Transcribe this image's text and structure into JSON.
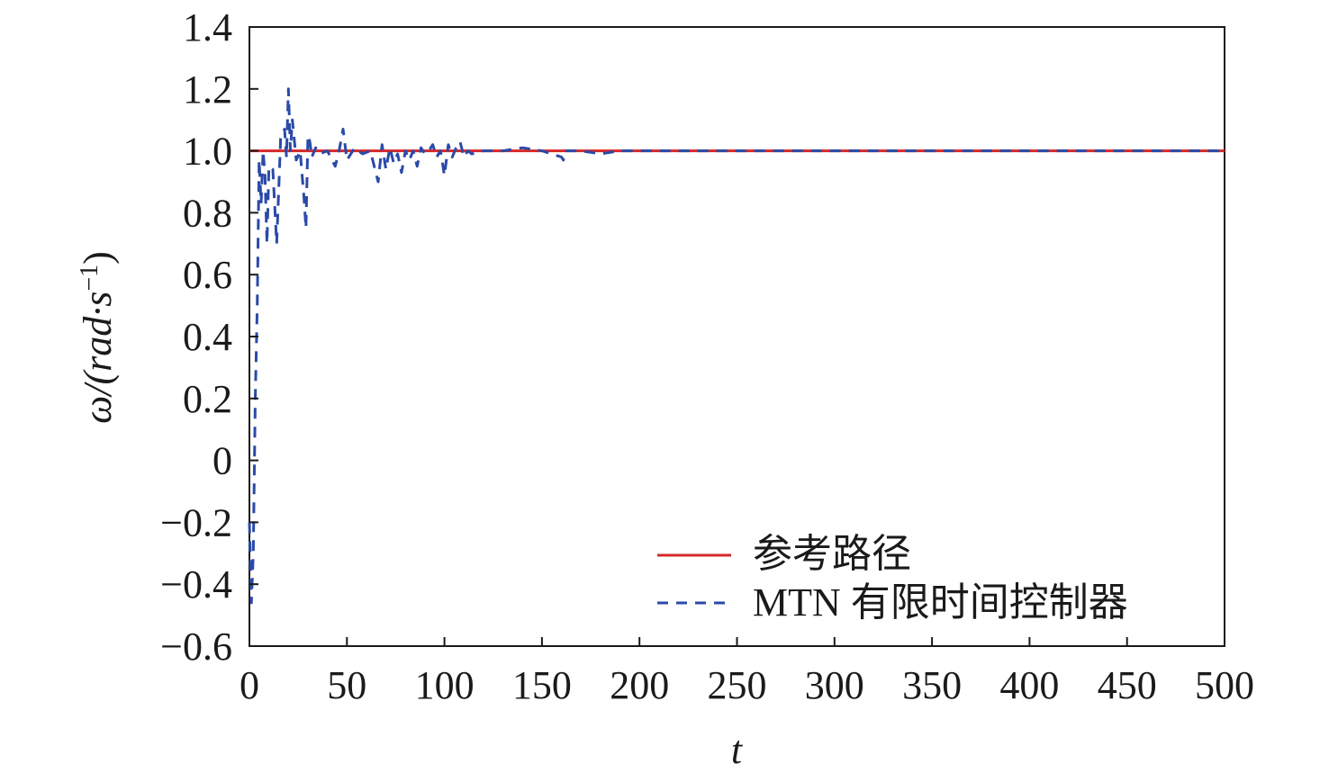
{
  "chart_data": {
    "type": "line",
    "xlabel": "t",
    "ylabel": "ω/(rad·s",
    "ylabel_unit_sup": "−1",
    "ylabel_close": ")",
    "xlim": [
      0,
      500
    ],
    "ylim": [
      -0.6,
      1.4
    ],
    "xticks": [
      0,
      50,
      100,
      150,
      200,
      250,
      300,
      350,
      400,
      450,
      500
    ],
    "xtick_labels": [
      "0",
      "50",
      "100",
      "150",
      "200",
      "250",
      "300",
      "350",
      "400",
      "450",
      "500"
    ],
    "yticks": [
      -0.6,
      -0.4,
      -0.2,
      0,
      0.2,
      0.4,
      0.6,
      0.8,
      1.0,
      1.2,
      1.4
    ],
    "ytick_labels": [
      "−0.6",
      "−0.4",
      "−0.2",
      "0",
      "0.2",
      "0.4",
      "0.6",
      "0.8",
      "1.0",
      "1.2",
      "1.4"
    ],
    "grid": false,
    "legend_position": "bottom-right",
    "series": [
      {
        "name": "参考路径",
        "color": "#d62728",
        "style": "solid",
        "x": [
          0,
          500
        ],
        "y": [
          1.0,
          1.0
        ]
      },
      {
        "name": "MTN 有限时间控制器",
        "color": "#2a4aa8",
        "style": "dashed",
        "x": [
          0,
          1,
          2,
          3,
          4,
          5,
          6,
          7,
          8,
          9,
          10,
          12,
          14,
          16,
          18,
          19,
          20,
          21,
          22,
          24,
          26,
          28,
          29,
          30,
          31,
          32,
          34,
          36,
          40,
          44,
          46,
          48,
          50,
          54,
          58,
          62,
          66,
          68,
          70,
          72,
          74,
          76,
          78,
          80,
          82,
          84,
          86,
          88,
          90,
          92,
          94,
          96,
          98,
          100,
          102,
          104,
          106,
          108,
          110,
          112,
          114,
          120,
          130,
          140,
          150,
          160,
          161,
          162,
          170,
          180,
          190,
          200,
          220,
          250,
          300,
          350,
          400,
          450,
          500
        ],
        "y": [
          -0.2,
          -0.46,
          -0.3,
          0.2,
          0.5,
          0.97,
          0.83,
          1.0,
          0.92,
          0.7,
          0.95,
          0.94,
          0.7,
          1.04,
          1.07,
          0.98,
          1.2,
          1.0,
          1.1,
          0.97,
          1.0,
          0.85,
          0.75,
          1.05,
          1.03,
          0.98,
          1.01,
          0.99,
          1.0,
          0.95,
          1.0,
          1.07,
          0.97,
          1.01,
          0.99,
          1.0,
          0.9,
          1.02,
          0.94,
          1.01,
          0.96,
          0.99,
          0.93,
          1.0,
          0.97,
          1.0,
          0.95,
          1.01,
          0.99,
          1.0,
          1.02,
          0.98,
          1.0,
          0.92,
          1.02,
          0.98,
          1.01,
          1.03,
          0.98,
          1.0,
          0.99,
          1.0,
          1.0,
          1.01,
          1.0,
          0.98,
          0.97,
          1.0,
          1.0,
          0.99,
          1.0,
          1.0,
          1.0,
          1.0,
          1.0,
          1.0,
          1.0,
          1.0,
          1.0
        ]
      }
    ]
  }
}
